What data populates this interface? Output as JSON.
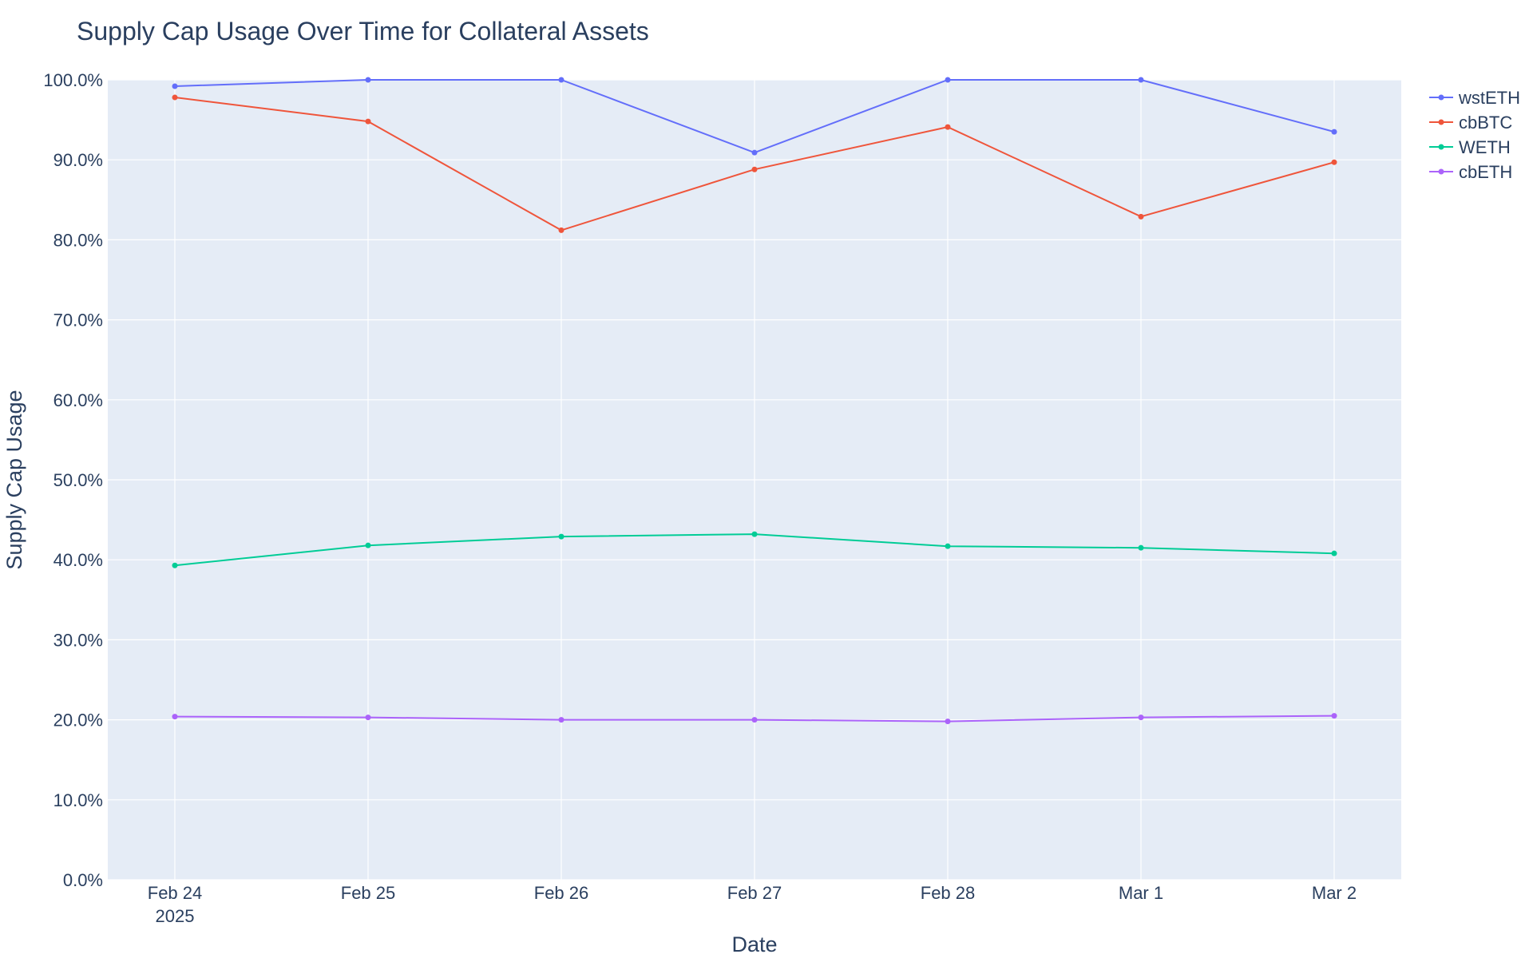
{
  "chart_data": {
    "type": "line",
    "title": "Supply Cap Usage Over Time for Collateral Assets",
    "xlabel": "Date",
    "ylabel": "Supply Cap Usage",
    "x": [
      "2025-02-24",
      "2025-02-25",
      "2025-02-26",
      "2025-02-27",
      "2025-02-28",
      "2025-03-01",
      "2025-03-02"
    ],
    "x_tick_labels": [
      "Feb 24",
      "Feb 25",
      "Feb 26",
      "Feb 27",
      "Feb 28",
      "Mar 1",
      "Mar 2"
    ],
    "x_tick_sublabel": "2025",
    "ylim": [
      0,
      1
    ],
    "y_ticks": [
      0,
      0.1,
      0.2,
      0.3,
      0.4,
      0.5,
      0.6,
      0.7,
      0.8,
      0.9,
      1.0
    ],
    "y_tick_labels": [
      "0.0%",
      "10.0%",
      "20.0%",
      "30.0%",
      "40.0%",
      "50.0%",
      "60.0%",
      "70.0%",
      "80.0%",
      "90.0%",
      "100.0%"
    ],
    "grid": true,
    "legend_position": "top-right, outside plot",
    "series": [
      {
        "name": "wstETH",
        "color": "#636efa",
        "values": [
          0.992,
          1.0,
          1.0,
          0.909,
          1.0,
          1.0,
          0.935
        ]
      },
      {
        "name": "cbBTC",
        "color": "#ef553b",
        "values": [
          0.978,
          0.948,
          0.812,
          0.888,
          0.941,
          0.829,
          0.897
        ]
      },
      {
        "name": "WETH",
        "color": "#00cc96",
        "values": [
          0.393,
          0.418,
          0.429,
          0.432,
          0.417,
          0.415,
          0.408
        ]
      },
      {
        "name": "cbETH",
        "color": "#ab63fa",
        "values": [
          0.204,
          0.203,
          0.2,
          0.2,
          0.198,
          0.203,
          0.205
        ]
      }
    ]
  }
}
